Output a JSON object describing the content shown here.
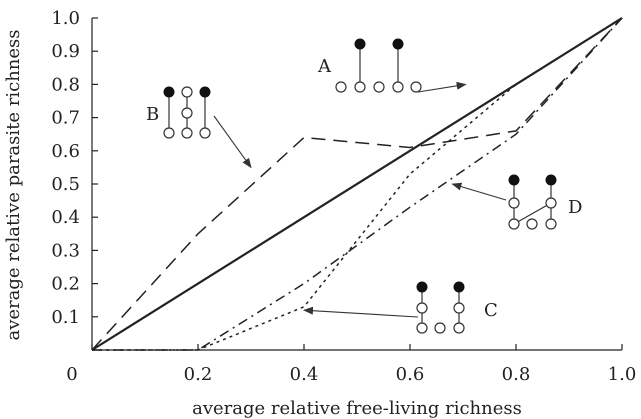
{
  "chart_data": {
    "type": "line",
    "title": "",
    "xlabel": "average relative free-living richness",
    "ylabel": "average relative parasite richness",
    "xlim": [
      0,
      1
    ],
    "ylim": [
      0,
      1
    ],
    "xticks": [
      "0",
      "0.2",
      "0.4",
      "0.6",
      "0.8",
      "1.0"
    ],
    "xtick_values": [
      0,
      0.2,
      0.4,
      0.6,
      0.8,
      1.0
    ],
    "yticks": [
      "0.1",
      "0.2",
      "0.3",
      "0.4",
      "0.5",
      "0.6",
      "0.7",
      "0.8",
      "0.9",
      "1.0"
    ],
    "ytick_values": [
      0.1,
      0.2,
      0.3,
      0.4,
      0.5,
      0.6,
      0.7,
      0.8,
      0.9,
      1.0
    ],
    "grid": false,
    "series": [
      {
        "name": "A",
        "style": "solid",
        "x": [
          0,
          1.0
        ],
        "y": [
          0,
          1.0
        ]
      },
      {
        "name": "B",
        "style": "dashed",
        "x": [
          0,
          0.2,
          0.4,
          0.6,
          0.8,
          1.0
        ],
        "y": [
          0,
          0.35,
          0.64,
          0.61,
          0.66,
          1.0
        ]
      },
      {
        "name": "C",
        "style": "dotted",
        "x": [
          0,
          0.2,
          0.4,
          0.6,
          0.8,
          1.0
        ],
        "y": [
          0,
          0,
          0.13,
          0.53,
          0.8,
          1.0
        ]
      },
      {
        "name": "D",
        "style": "dash-dot",
        "x": [
          0,
          0.2,
          0.4,
          0.6,
          0.8,
          1.0
        ],
        "y": [
          0,
          0,
          0.2,
          0.43,
          0.65,
          1.0
        ]
      }
    ],
    "annotations": [
      {
        "label": "A",
        "points_to": [
          0.705,
          0.8
        ]
      },
      {
        "label": "B",
        "points_to": [
          0.3,
          0.55
        ]
      },
      {
        "label": "C",
        "points_to": [
          0.4,
          0.12
        ]
      },
      {
        "label": "D",
        "points_to": [
          0.68,
          0.5
        ]
      }
    ]
  }
}
